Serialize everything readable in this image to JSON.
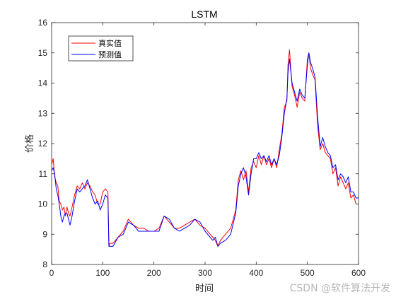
{
  "chart_data": {
    "type": "line",
    "title": "LSTM",
    "xlabel": "时间",
    "ylabel": "价格",
    "xlim": [
      0,
      600
    ],
    "ylim": [
      8,
      16
    ],
    "xticks": [
      0,
      100,
      200,
      300,
      400,
      500,
      600
    ],
    "yticks": [
      8,
      9,
      10,
      11,
      12,
      13,
      14,
      15,
      16
    ],
    "grid": false,
    "legend_position": "top-left",
    "series": [
      {
        "name": "真实值",
        "color": "#ff0000",
        "x": [
          0,
          3,
          6,
          9,
          12,
          15,
          18,
          21,
          24,
          27,
          30,
          33,
          36,
          40,
          45,
          50,
          55,
          60,
          65,
          70,
          75,
          80,
          85,
          90,
          95,
          100,
          105,
          110,
          112,
          114,
          120,
          130,
          140,
          150,
          160,
          170,
          180,
          190,
          200,
          210,
          220,
          230,
          240,
          250,
          260,
          270,
          280,
          290,
          300,
          310,
          315,
          320,
          325,
          330,
          340,
          350,
          360,
          365,
          370,
          375,
          380,
          385,
          390,
          395,
          400,
          405,
          410,
          415,
          420,
          425,
          430,
          435,
          440,
          445,
          450,
          455,
          460,
          462,
          465,
          470,
          475,
          480,
          485,
          490,
          495,
          500,
          503,
          506,
          510,
          515,
          520,
          525,
          530,
          535,
          540,
          545,
          550,
          555,
          560,
          565,
          570,
          575,
          580,
          585,
          590,
          595,
          600
        ],
        "values": [
          11.3,
          11.5,
          10.9,
          10.7,
          10.6,
          10.1,
          10.0,
          9.8,
          9.9,
          9.6,
          9.9,
          9.7,
          9.6,
          9.9,
          10.3,
          10.6,
          10.5,
          10.7,
          10.5,
          10.7,
          10.6,
          10.4,
          10.3,
          10.0,
          10.0,
          10.4,
          10.5,
          10.4,
          8.6,
          8.7,
          8.7,
          8.9,
          9.1,
          9.5,
          9.3,
          9.2,
          9.2,
          9.1,
          9.1,
          9.2,
          9.6,
          9.4,
          9.2,
          9.2,
          9.3,
          9.4,
          9.5,
          9.3,
          9.2,
          9.0,
          8.9,
          8.8,
          8.6,
          8.8,
          9.0,
          9.2,
          9.8,
          10.8,
          11.1,
          10.8,
          11.1,
          10.4,
          11.2,
          11.4,
          11.2,
          11.6,
          11.3,
          11.6,
          11.3,
          11.5,
          11.2,
          11.5,
          11.2,
          11.8,
          12.3,
          13.2,
          13.4,
          14.6,
          15.1,
          13.9,
          13.6,
          13.2,
          13.7,
          13.5,
          13.4,
          14.8,
          15.0,
          14.5,
          14.3,
          14.1,
          12.6,
          11.8,
          12.0,
          11.7,
          11.6,
          11.5,
          11.0,
          11.2,
          10.6,
          10.9,
          10.7,
          10.5,
          10.7,
          10.2,
          10.3,
          10.0,
          10.0
        ]
      },
      {
        "name": "预测值",
        "color": "#0000ff",
        "x": [
          0,
          3,
          6,
          9,
          12,
          15,
          18,
          21,
          24,
          27,
          30,
          33,
          36,
          40,
          45,
          50,
          55,
          60,
          65,
          70,
          75,
          80,
          85,
          90,
          95,
          100,
          105,
          110,
          112,
          114,
          120,
          130,
          140,
          150,
          160,
          170,
          180,
          190,
          200,
          210,
          220,
          230,
          240,
          250,
          260,
          270,
          280,
          290,
          300,
          310,
          315,
          320,
          325,
          330,
          340,
          350,
          360,
          365,
          370,
          375,
          380,
          385,
          390,
          395,
          400,
          405,
          410,
          415,
          420,
          425,
          430,
          435,
          440,
          445,
          450,
          455,
          460,
          462,
          465,
          470,
          475,
          480,
          485,
          490,
          495,
          500,
          503,
          506,
          510,
          515,
          520,
          525,
          530,
          535,
          540,
          545,
          550,
          555,
          560,
          565,
          570,
          575,
          580,
          585,
          590,
          595,
          600
        ],
        "values": [
          11.1,
          11.2,
          11.0,
          10.5,
          10.3,
          10.0,
          9.6,
          9.4,
          9.6,
          9.7,
          9.7,
          9.5,
          9.3,
          9.6,
          10.1,
          10.5,
          10.4,
          10.5,
          10.6,
          10.8,
          10.5,
          10.2,
          10.0,
          10.1,
          9.8,
          10.0,
          10.3,
          10.2,
          8.6,
          8.6,
          8.6,
          8.9,
          9.0,
          9.4,
          9.3,
          9.1,
          9.1,
          9.1,
          9.1,
          9.1,
          9.6,
          9.5,
          9.2,
          9.1,
          9.2,
          9.3,
          9.5,
          9.4,
          9.1,
          8.9,
          8.8,
          8.9,
          8.6,
          8.7,
          8.8,
          9.0,
          9.7,
          10.6,
          11.0,
          11.2,
          10.9,
          10.3,
          11.0,
          11.5,
          11.5,
          11.7,
          11.5,
          11.6,
          11.4,
          11.6,
          11.3,
          11.5,
          11.3,
          11.6,
          12.2,
          13.0,
          13.5,
          14.3,
          14.8,
          14.0,
          13.7,
          13.4,
          13.8,
          13.6,
          13.5,
          14.6,
          15.0,
          14.7,
          14.5,
          14.2,
          12.9,
          11.9,
          12.2,
          11.9,
          11.7,
          11.6,
          11.2,
          11.3,
          10.8,
          11.0,
          10.9,
          10.7,
          10.9,
          10.4,
          10.4,
          10.2,
          10.2
        ]
      }
    ]
  },
  "watermark": "CSDN @软件算法开发"
}
